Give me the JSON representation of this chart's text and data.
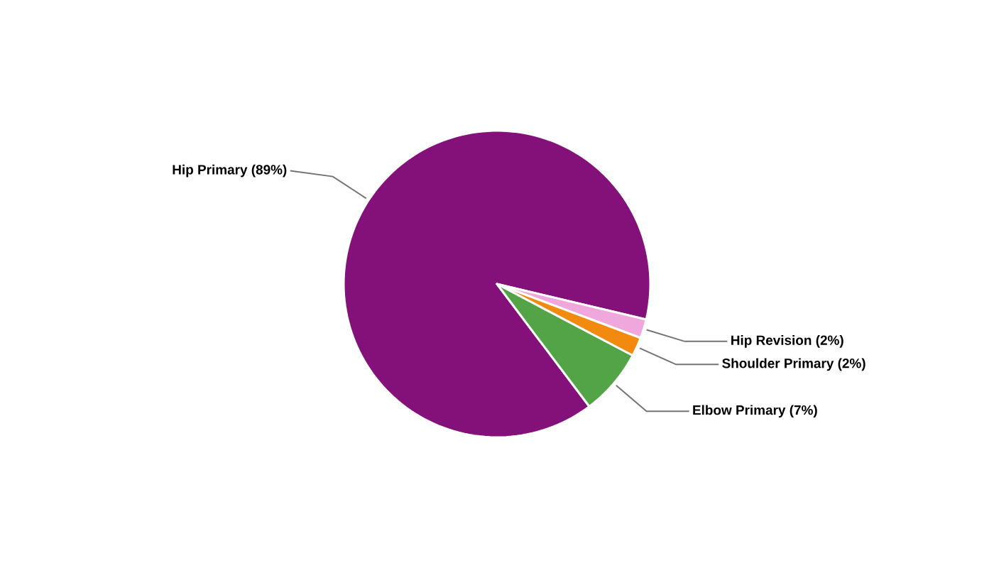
{
  "chart_data": {
    "type": "pie",
    "categories": [
      "Hip Primary",
      "Hip Revision",
      "Shoulder Primary",
      "Elbow Primary"
    ],
    "values": [
      89,
      2,
      2,
      7
    ],
    "value_labels": [
      "(89%)",
      "(2%)",
      "(2%)",
      "(7%)"
    ],
    "colors": [
      "#84117a",
      "#f0a8dc",
      "#f28a10",
      "#52a447"
    ]
  }
}
